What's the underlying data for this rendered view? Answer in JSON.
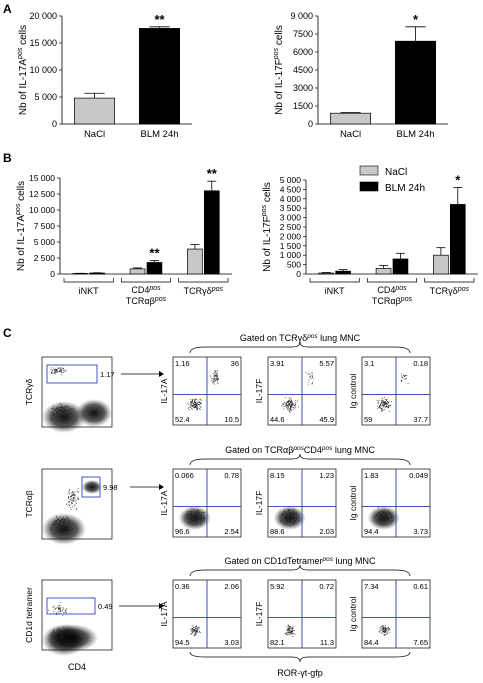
{
  "panel_letters": {
    "a": "A",
    "b": "B",
    "c": "C"
  },
  "colors": {
    "nacl": "#c8c8c8",
    "blm": "#000000",
    "gate_line": "#2b3fa8",
    "box": "#3344bb"
  },
  "chart_data": [
    {
      "type": "bar",
      "panel": "A-left",
      "categories": [
        "NaCl",
        "BLM 24h"
      ],
      "values": [
        4800,
        17700
      ],
      "errors": [
        900,
        300
      ],
      "ylabel": "Nb of IL-17A",
      "ylabel_sup": "pos",
      "ylabel_tail": " cells",
      "ylim": [
        0,
        20000
      ],
      "yticks": [
        "0",
        "5 000",
        "10 000",
        "15 000",
        "20 000"
      ],
      "significance": [
        "",
        "**"
      ]
    },
    {
      "type": "bar",
      "panel": "A-right",
      "categories": [
        "NaCl",
        "BLM 24h"
      ],
      "values": [
        900,
        6900
      ],
      "errors": [
        60,
        1200
      ],
      "ylabel": "Nb of IL-17F",
      "ylabel_sup": "pos",
      "ylabel_tail": " cells",
      "ylim": [
        0,
        9000
      ],
      "yticks": [
        "0",
        "1500",
        "3000",
        "4500",
        "6000",
        "7500",
        "9 000"
      ],
      "significance": [
        "",
        "*"
      ]
    },
    {
      "type": "bar",
      "panel": "B-left",
      "groups": [
        "iNKT",
        "CD4pos TCRαβpos",
        "TCRγδpos"
      ],
      "series": [
        {
          "name": "NaCl",
          "values": [
            80,
            800,
            3900
          ],
          "errors": [
            30,
            150,
            700
          ]
        },
        {
          "name": "BLM 24h",
          "values": [
            150,
            1800,
            13000
          ],
          "errors": [
            40,
            300,
            1500
          ]
        }
      ],
      "ylabel": "Nb of IL-17A",
      "ylabel_sup": "pos",
      "ylabel_tail": " cells",
      "ylim": [
        0,
        15000
      ],
      "yticks": [
        "0",
        "2 500",
        "5 000",
        "7 500",
        "10 000",
        "12 500",
        "15 000"
      ],
      "significance": [
        [
          "",
          ""
        ],
        [
          "",
          "**"
        ],
        [
          "",
          "**"
        ]
      ]
    },
    {
      "type": "bar",
      "panel": "B-right",
      "groups": [
        "iNKT",
        "CD4pos TCRαβpos",
        "TCRγδpos"
      ],
      "series": [
        {
          "name": "NaCl",
          "values": [
            50,
            300,
            1000
          ],
          "errors": [
            30,
            150,
            400
          ]
        },
        {
          "name": "BLM 24h",
          "values": [
            150,
            800,
            3700
          ],
          "errors": [
            80,
            300,
            900
          ]
        }
      ],
      "ylabel": "Nb of IL-17F",
      "ylabel_sup": "pos",
      "ylabel_tail": " cells",
      "ylim": [
        0,
        5000
      ],
      "yticks": [
        "0",
        "500",
        "1 000",
        "1 500",
        "2 000",
        "2 500",
        "3 000",
        "3 500",
        "4 000",
        "4 500",
        "5 000"
      ],
      "significance": [
        [
          "",
          ""
        ],
        [
          "",
          ""
        ],
        [
          "",
          "*"
        ]
      ]
    }
  ],
  "legend": {
    "items": [
      "NaCl",
      "BLM 24h"
    ]
  },
  "group_labels": {
    "inkt": "iNKT",
    "cd4_a": "CD4",
    "cd4_sup": "pos",
    "tcrab_a": "TCRαβ",
    "tcrab_sup": "pos",
    "tcrgd_a": "TCRγδ",
    "tcrgd_sup": "pos"
  },
  "panel_c": {
    "rows": [
      {
        "gate_title": "Gated on TCRγδ",
        "gate_sup": "pos",
        "gate_tail": " lung MNC",
        "scatter_ylabel": "TCRγδ",
        "gate_value": "1.17",
        "plots": [
          {
            "ylabel": "IL-17A",
            "q": [
              "1.16",
              "36",
              "52.4",
              "10.5"
            ]
          },
          {
            "ylabel": "IL-17F",
            "q": [
              "3.91",
              "5.57",
              "44.6",
              "45.9"
            ]
          },
          {
            "ylabel": "Ig control",
            "q": [
              "3.1",
              "0.18",
              "59",
              "37.7"
            ]
          }
        ]
      },
      {
        "gate_title": "Gated on TCRαβ",
        "gate_sup": "pos",
        "gate_mid": "CD4",
        "gate_sup2": "pos",
        "gate_tail": " lung MNC",
        "scatter_ylabel": "TCRαβ",
        "gate_value": "9.98",
        "plots": [
          {
            "ylabel": "IL-17A",
            "q": [
              "0.066",
              "0.78",
              "96.6",
              "2.54"
            ]
          },
          {
            "ylabel": "IL-17F",
            "q": [
              "8.15",
              "1.23",
              "88.6",
              "2.03"
            ]
          },
          {
            "ylabel": "Ig control",
            "q": [
              "1.83",
              "0.049",
              "94.4",
              "3.73"
            ]
          }
        ]
      },
      {
        "gate_title": "Gated on CD1dTetramer",
        "gate_sup": "pos",
        "gate_tail": " lung MNC",
        "scatter_ylabel": "CD1d tetramer",
        "gate_value": "0.49",
        "plots": [
          {
            "ylabel": "IL-17A",
            "q": [
              "0.36",
              "2.06",
              "94.5",
              "3.03"
            ]
          },
          {
            "ylabel": "IL-17F",
            "q": [
              "5.92",
              "0.72",
              "82.1",
              "11.3"
            ]
          },
          {
            "ylabel": "Ig control",
            "q": [
              "7.34",
              "0.61",
              "84.4",
              "7.65"
            ]
          }
        ]
      }
    ],
    "xlabel_left": "CD4",
    "xlabel_bottom": "ROR-γt-gfp"
  }
}
